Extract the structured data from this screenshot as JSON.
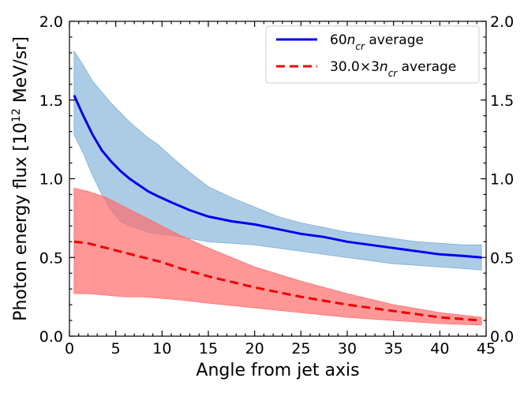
{
  "chart_data": {
    "type": "line",
    "xlabel": "Angle from jet axis",
    "ylabel": "Photon energy flux [10",
    "ylabel_sup": "12",
    "ylabel_unit": " MeV/sr]",
    "xlim": [
      0,
      45
    ],
    "ylim": [
      0.0,
      2.0
    ],
    "x_ticks": [
      0,
      5,
      10,
      15,
      20,
      25,
      30,
      35,
      40,
      45
    ],
    "x_tick_labels": [
      "0",
      "5",
      "10",
      "15",
      "20",
      "25",
      "30",
      "35",
      "40",
      "45"
    ],
    "y_ticks": [
      0.0,
      0.5,
      1.0,
      1.5,
      2.0
    ],
    "y_tick_labels": [
      "0.0",
      "0.5",
      "1.0",
      "1.5",
      "2.0"
    ],
    "legend_position": "top-right",
    "series": [
      {
        "name": "60ncr average",
        "legend_parts": [
          "60",
          "n",
          "cr",
          " average"
        ],
        "color": "#0000ee",
        "band_color": "#7fb0d8",
        "line_style": "solid",
        "x": [
          0.5,
          1.5,
          2.5,
          3.5,
          4.5,
          5.5,
          6.5,
          7.5,
          8.5,
          9.5,
          11,
          13,
          15,
          17.5,
          20,
          22.5,
          25,
          27.5,
          30,
          32.5,
          35,
          37.5,
          40,
          42.5,
          44.5
        ],
        "mean": [
          1.53,
          1.4,
          1.28,
          1.18,
          1.11,
          1.05,
          1.0,
          0.96,
          0.92,
          0.89,
          0.85,
          0.8,
          0.76,
          0.73,
          0.71,
          0.68,
          0.65,
          0.63,
          0.6,
          0.58,
          0.56,
          0.54,
          0.52,
          0.51,
          0.5
        ],
        "upper": [
          1.81,
          1.72,
          1.62,
          1.55,
          1.48,
          1.42,
          1.36,
          1.31,
          1.26,
          1.22,
          1.14,
          1.04,
          0.95,
          0.88,
          0.82,
          0.76,
          0.72,
          0.69,
          0.66,
          0.64,
          0.62,
          0.6,
          0.59,
          0.58,
          0.58
        ],
        "lower": [
          1.28,
          1.16,
          1.02,
          0.9,
          0.8,
          0.73,
          0.7,
          0.68,
          0.66,
          0.65,
          0.64,
          0.62,
          0.6,
          0.59,
          0.58,
          0.56,
          0.54,
          0.52,
          0.5,
          0.48,
          0.46,
          0.45,
          0.44,
          0.43,
          0.42
        ]
      },
      {
        "name": "30.0×3ncr average",
        "legend_parts": [
          "30.0×3",
          "n",
          "cr",
          " average"
        ],
        "color": "#ee0000",
        "band_color": "#ff6b6b",
        "line_style": "dashed",
        "x": [
          0.5,
          2,
          4,
          6,
          8,
          10,
          12,
          15,
          20,
          25,
          30,
          35,
          40,
          44.5
        ],
        "mean": [
          0.6,
          0.59,
          0.56,
          0.53,
          0.5,
          0.47,
          0.43,
          0.38,
          0.31,
          0.25,
          0.2,
          0.16,
          0.12,
          0.1
        ],
        "upper": [
          0.94,
          0.92,
          0.88,
          0.82,
          0.76,
          0.7,
          0.64,
          0.56,
          0.44,
          0.35,
          0.27,
          0.2,
          0.15,
          0.12
        ],
        "lower": [
          0.27,
          0.27,
          0.26,
          0.25,
          0.25,
          0.24,
          0.23,
          0.21,
          0.18,
          0.15,
          0.12,
          0.1,
          0.08,
          0.07
        ]
      }
    ]
  }
}
